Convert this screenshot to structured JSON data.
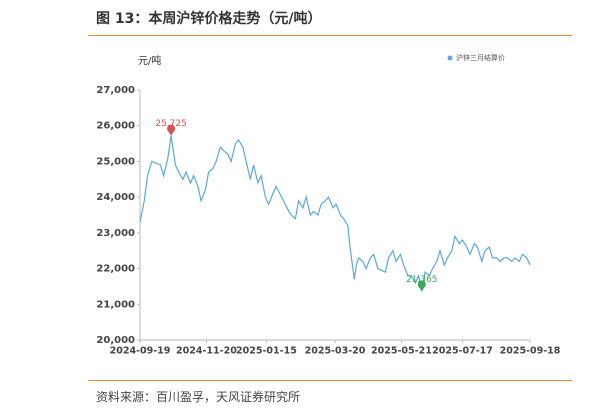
{
  "header": {
    "title": "图 13：本周沪锌价格走势（元/吨）"
  },
  "chart_data": {
    "type": "line",
    "y_label": "元/吨",
    "series": [
      {
        "name": "沪锌三月结算价",
        "color": "#5aa9d6",
        "x": [
          "2024-09-19",
          "2024-09-23",
          "2024-09-26",
          "2024-09-30",
          "2024-10-08",
          "2024-10-11",
          "2024-10-15",
          "2024-10-18",
          "2024-10-22",
          "2024-10-25",
          "2024-10-29",
          "2024-11-01",
          "2024-11-05",
          "2024-11-08",
          "2024-11-12",
          "2024-11-15",
          "2024-11-19",
          "2024-11-22",
          "2024-11-26",
          "2024-11-29",
          "2024-12-03",
          "2024-12-06",
          "2024-12-10",
          "2024-12-13",
          "2024-12-17",
          "2024-12-20",
          "2024-12-24",
          "2024-12-27",
          "2024-12-31",
          "2025-01-03",
          "2025-01-07",
          "2025-01-10",
          "2025-01-14",
          "2025-01-17",
          "2025-01-21",
          "2025-01-24",
          "2025-02-05",
          "2025-02-07",
          "2025-02-11",
          "2025-02-14",
          "2025-02-18",
          "2025-02-21",
          "2025-02-25",
          "2025-02-28",
          "2025-03-04",
          "2025-03-07",
          "2025-03-11",
          "2025-03-14",
          "2025-03-18",
          "2025-03-21",
          "2025-03-25",
          "2025-03-28",
          "2025-04-01",
          "2025-04-03",
          "2025-04-07",
          "2025-04-09",
          "2025-04-11",
          "2025-04-15",
          "2025-04-18",
          "2025-04-22",
          "2025-04-25",
          "2025-04-29",
          "2025-05-06",
          "2025-05-09",
          "2025-05-13",
          "2025-05-16",
          "2025-05-20",
          "2025-05-23",
          "2025-05-27",
          "2025-05-30",
          "2025-06-03",
          "2025-06-06",
          "2025-06-09",
          "2025-06-12",
          "2025-06-16",
          "2025-06-19",
          "2025-06-23",
          "2025-06-26",
          "2025-06-30",
          "2025-07-03",
          "2025-07-07",
          "2025-07-10",
          "2025-07-14",
          "2025-07-17",
          "2025-07-21",
          "2025-07-24",
          "2025-07-28",
          "2025-07-31",
          "2025-08-04",
          "2025-08-07",
          "2025-08-11",
          "2025-08-14",
          "2025-08-18",
          "2025-08-21",
          "2025-08-25",
          "2025-08-28",
          "2025-09-01",
          "2025-09-04",
          "2025-09-08",
          "2025-09-11",
          "2025-09-15",
          "2025-09-18"
        ],
        "values": [
          23300,
          23900,
          24600,
          25000,
          24900,
          24600,
          25100,
          25725,
          24900,
          24700,
          24500,
          24700,
          24400,
          24600,
          24300,
          23900,
          24200,
          24700,
          24800,
          25000,
          25400,
          25300,
          25200,
          25000,
          25500,
          25600,
          25400,
          25000,
          24500,
          24900,
          24400,
          24600,
          24000,
          23800,
          24100,
          24300,
          23600,
          23500,
          23400,
          23900,
          23700,
          24000,
          23500,
          23600,
          23500,
          23800,
          23900,
          24000,
          23700,
          23800,
          23500,
          23400,
          23200,
          22600,
          21700,
          22100,
          22300,
          22200,
          22000,
          22300,
          22400,
          22000,
          21900,
          22300,
          22500,
          22200,
          22400,
          22100,
          21800,
          21800,
          21600,
          21800,
          21365,
          21900,
          21800,
          22000,
          22200,
          22500,
          22100,
          22300,
          22500,
          22900,
          22700,
          22800,
          22600,
          22400,
          22700,
          22600,
          22200,
          22500,
          22600,
          22300,
          22300,
          22200,
          22300,
          22300,
          22200,
          22300,
          22200,
          22400,
          22300,
          22100
        ]
      }
    ],
    "annotations": [
      {
        "x": "2024-10-18",
        "value": 25725,
        "label": "25,725",
        "color": "#d9534f"
      },
      {
        "x": "2025-06-09",
        "value": 21365,
        "label": "21,365",
        "color": "#3aa65a"
      }
    ],
    "xlim": [
      "2024-09-19",
      "2025-09-18"
    ],
    "xticks": [
      "2024-09-19",
      "2024-11-20",
      "2025-01-15",
      "2025-03-20",
      "2025-05-21",
      "2025-07-17",
      "2025-09-18"
    ],
    "ylim": [
      20000,
      27000
    ],
    "yticks": [
      {
        "value": 20000,
        "label": "20,000"
      },
      {
        "value": 21000,
        "label": "21,000"
      },
      {
        "value": 22000,
        "label": "22,000"
      },
      {
        "value": 23000,
        "label": "23,000"
      },
      {
        "value": 24000,
        "label": "24,000"
      },
      {
        "value": 25000,
        "label": "25,000"
      },
      {
        "value": 26000,
        "label": "26,000"
      },
      {
        "value": 27000,
        "label": "27,000"
      }
    ],
    "legend": "top-right"
  },
  "footer": {
    "source": "资料来源：百川盈孚，天风证券研究所"
  }
}
